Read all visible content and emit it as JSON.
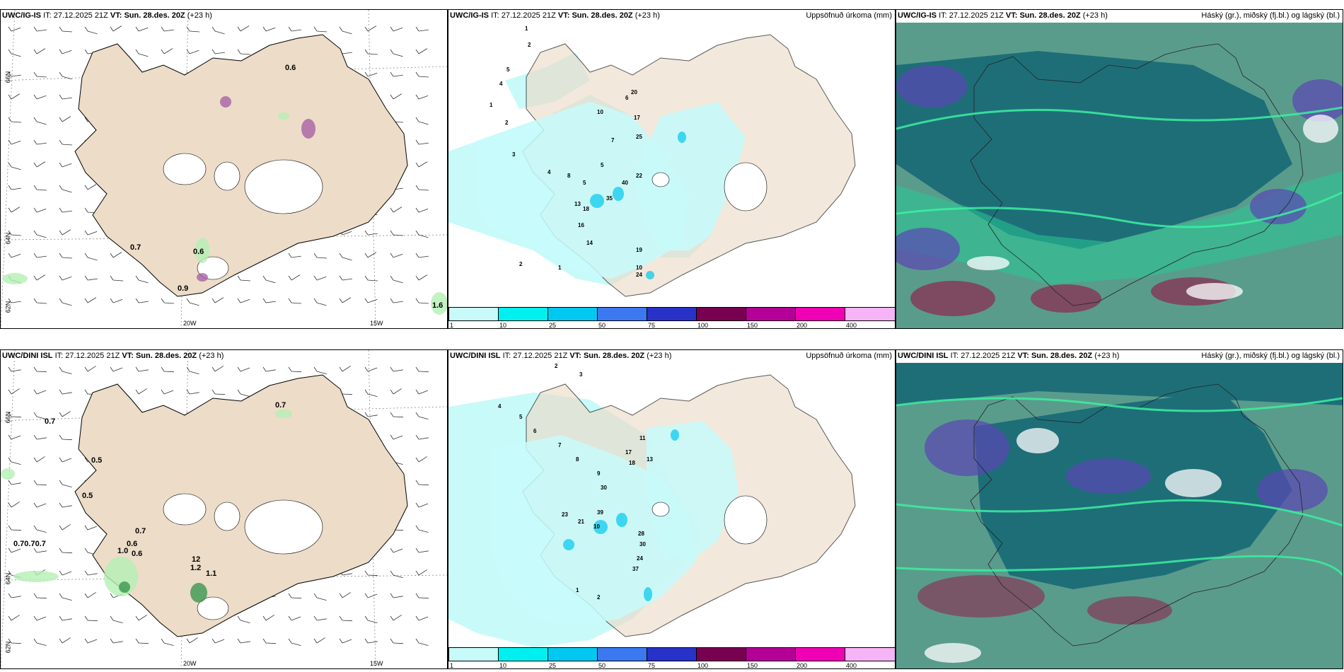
{
  "rows": [
    {
      "model": "UWC/IG-IS",
      "it_label": "IT:",
      "it_value": "27.12.2025 21Z",
      "vt_label": "VT:",
      "vt_value": "Sun. 28.des. 20Z",
      "lead": "(+23 h)",
      "wind_values": [
        "0.6",
        "0.7",
        "0.6",
        "0.9",
        "1.6"
      ],
      "precip_values": [
        "1",
        "2",
        "5",
        "4",
        "1",
        "2",
        "3",
        "4",
        "5",
        "10",
        "7",
        "6",
        "20",
        "17",
        "25",
        "5",
        "8",
        "13",
        "18",
        "35",
        "40",
        "22",
        "16",
        "14",
        "19",
        "10",
        "24",
        "2",
        "1"
      ],
      "lon_labels": [
        "20W",
        "15W"
      ],
      "lat_labels": [
        "66N",
        "64N",
        "62N"
      ]
    },
    {
      "model": "UWC/DINI ISL",
      "it_label": "IT:",
      "it_value": "27.12.2025 21Z",
      "vt_label": "VT:",
      "vt_value": "Sun. 28.des. 20Z",
      "lead": "(+23 h)",
      "wind_values": [
        "0.7",
        "0.7",
        "0.5",
        "0.5",
        "0.7",
        "0.70.70.7",
        "0.6",
        "1.0",
        "0.6",
        "12",
        "1.2",
        "1.1"
      ],
      "precip_values": [
        "2",
        "3",
        "4",
        "5",
        "6",
        "7",
        "8",
        "9",
        "11",
        "13",
        "17",
        "18",
        "30",
        "39",
        "23",
        "21",
        "10",
        "28",
        "30",
        "24",
        "37",
        "1",
        "2"
      ],
      "lon_labels": [
        "20W",
        "15W"
      ],
      "lat_labels": [
        "66N",
        "64N",
        "62N"
      ]
    }
  ],
  "precip_title": "Uppsöfnuð úrkoma (mm)",
  "cloud_title": "Háský (gr.), miðský (fj.bl.) og lágský (bl.)",
  "legend": {
    "colors": [
      "#c8fafa",
      "#00f0f0",
      "#00c8f0",
      "#3c78f0",
      "#2832c8",
      "#780050",
      "#b40096",
      "#f000b4",
      "#f5b4f5"
    ],
    "ticks": [
      "1",
      "10",
      "25",
      "50",
      "75",
      "100",
      "150",
      "200",
      "400"
    ]
  },
  "colors": {
    "land": "#ecdcc8",
    "precip_light": "#c8fafa",
    "cloud_low": "#1e6e78",
    "cloud_mid": "#5a9c8c",
    "cloud_high": "#28c896"
  }
}
